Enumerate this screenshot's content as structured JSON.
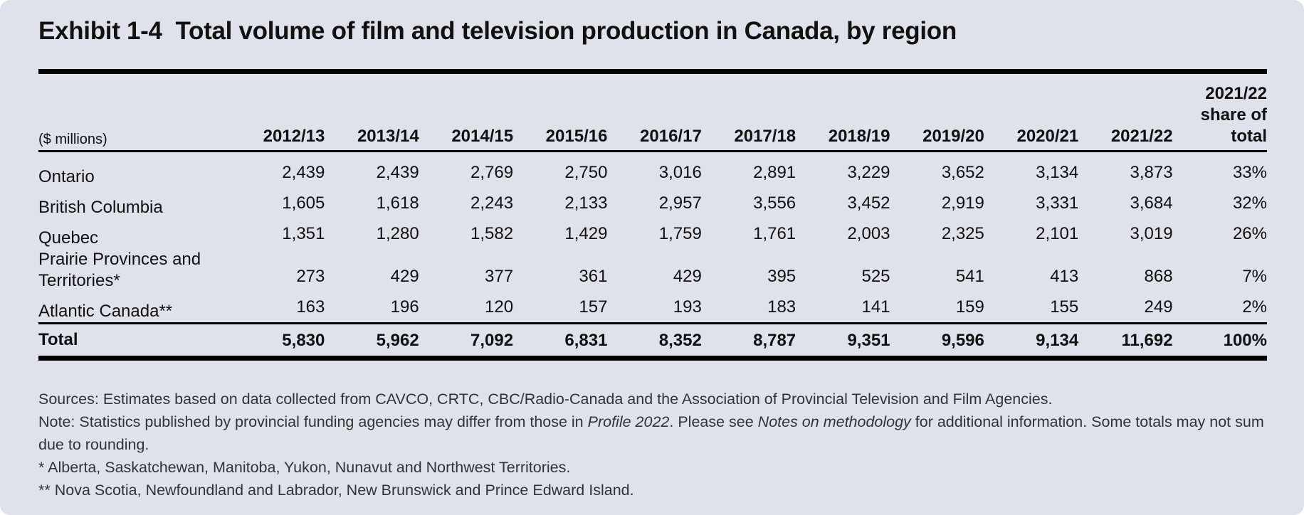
{
  "title": "Exhibit 1-4  Total volume of film and television production in Canada, by region",
  "table": {
    "header": [
      "($ millions)",
      "2012/13",
      "2013/14",
      "2014/15",
      "2015/16",
      "2016/17",
      "2017/18",
      "2018/19",
      "2019/20",
      "2020/21",
      "2021/22",
      "2021/22 share of total"
    ],
    "rows": [
      [
        "Ontario",
        "2,439",
        "2,439",
        "2,769",
        "2,750",
        "3,016",
        "2,891",
        "3,229",
        "3,652",
        "3,134",
        "3,873",
        "33%"
      ],
      [
        "British Columbia",
        "1,605",
        "1,618",
        "2,243",
        "2,133",
        "2,957",
        "3,556",
        "3,452",
        "2,919",
        "3,331",
        "3,684",
        "32%"
      ],
      [
        "Quebec",
        "1,351",
        "1,280",
        "1,582",
        "1,429",
        "1,759",
        "1,761",
        "2,003",
        "2,325",
        "2,101",
        "3,019",
        "26%"
      ],
      [
        "Prairie Provinces and Territories*",
        "273",
        "429",
        "377",
        "361",
        "429",
        "395",
        "525",
        "541",
        "413",
        "868",
        "7%"
      ],
      [
        "Atlantic Canada**",
        "163",
        "196",
        "120",
        "157",
        "193",
        "183",
        "141",
        "159",
        "155",
        "249",
        "2%"
      ]
    ],
    "total": [
      "Total",
      "5,830",
      "5,962",
      "7,092",
      "6,831",
      "8,352",
      "8,787",
      "9,351",
      "9,596",
      "9,134",
      "11,692",
      "100%"
    ]
  },
  "notes": {
    "sources": "Sources: Estimates based on data collected from CAVCO, CRTC, CBC/Radio-Canada and the Association of Provincial Television and Film Agencies.",
    "note": [
      "Note: Statistics published by provincial funding agencies may differ from those in ",
      "Profile 2022",
      ". Please see ",
      "Notes on methodology",
      " for additional information. Some totals may not sum due to rounding."
    ],
    "footnote1": "* Alberta, Saskatchewan, Manitoba, Yukon, Nunavut and Northwest Territories.",
    "footnote2": "** Nova Scotia, Newfoundland and Labrador, New Brunswick and Prince Edward Island."
  }
}
